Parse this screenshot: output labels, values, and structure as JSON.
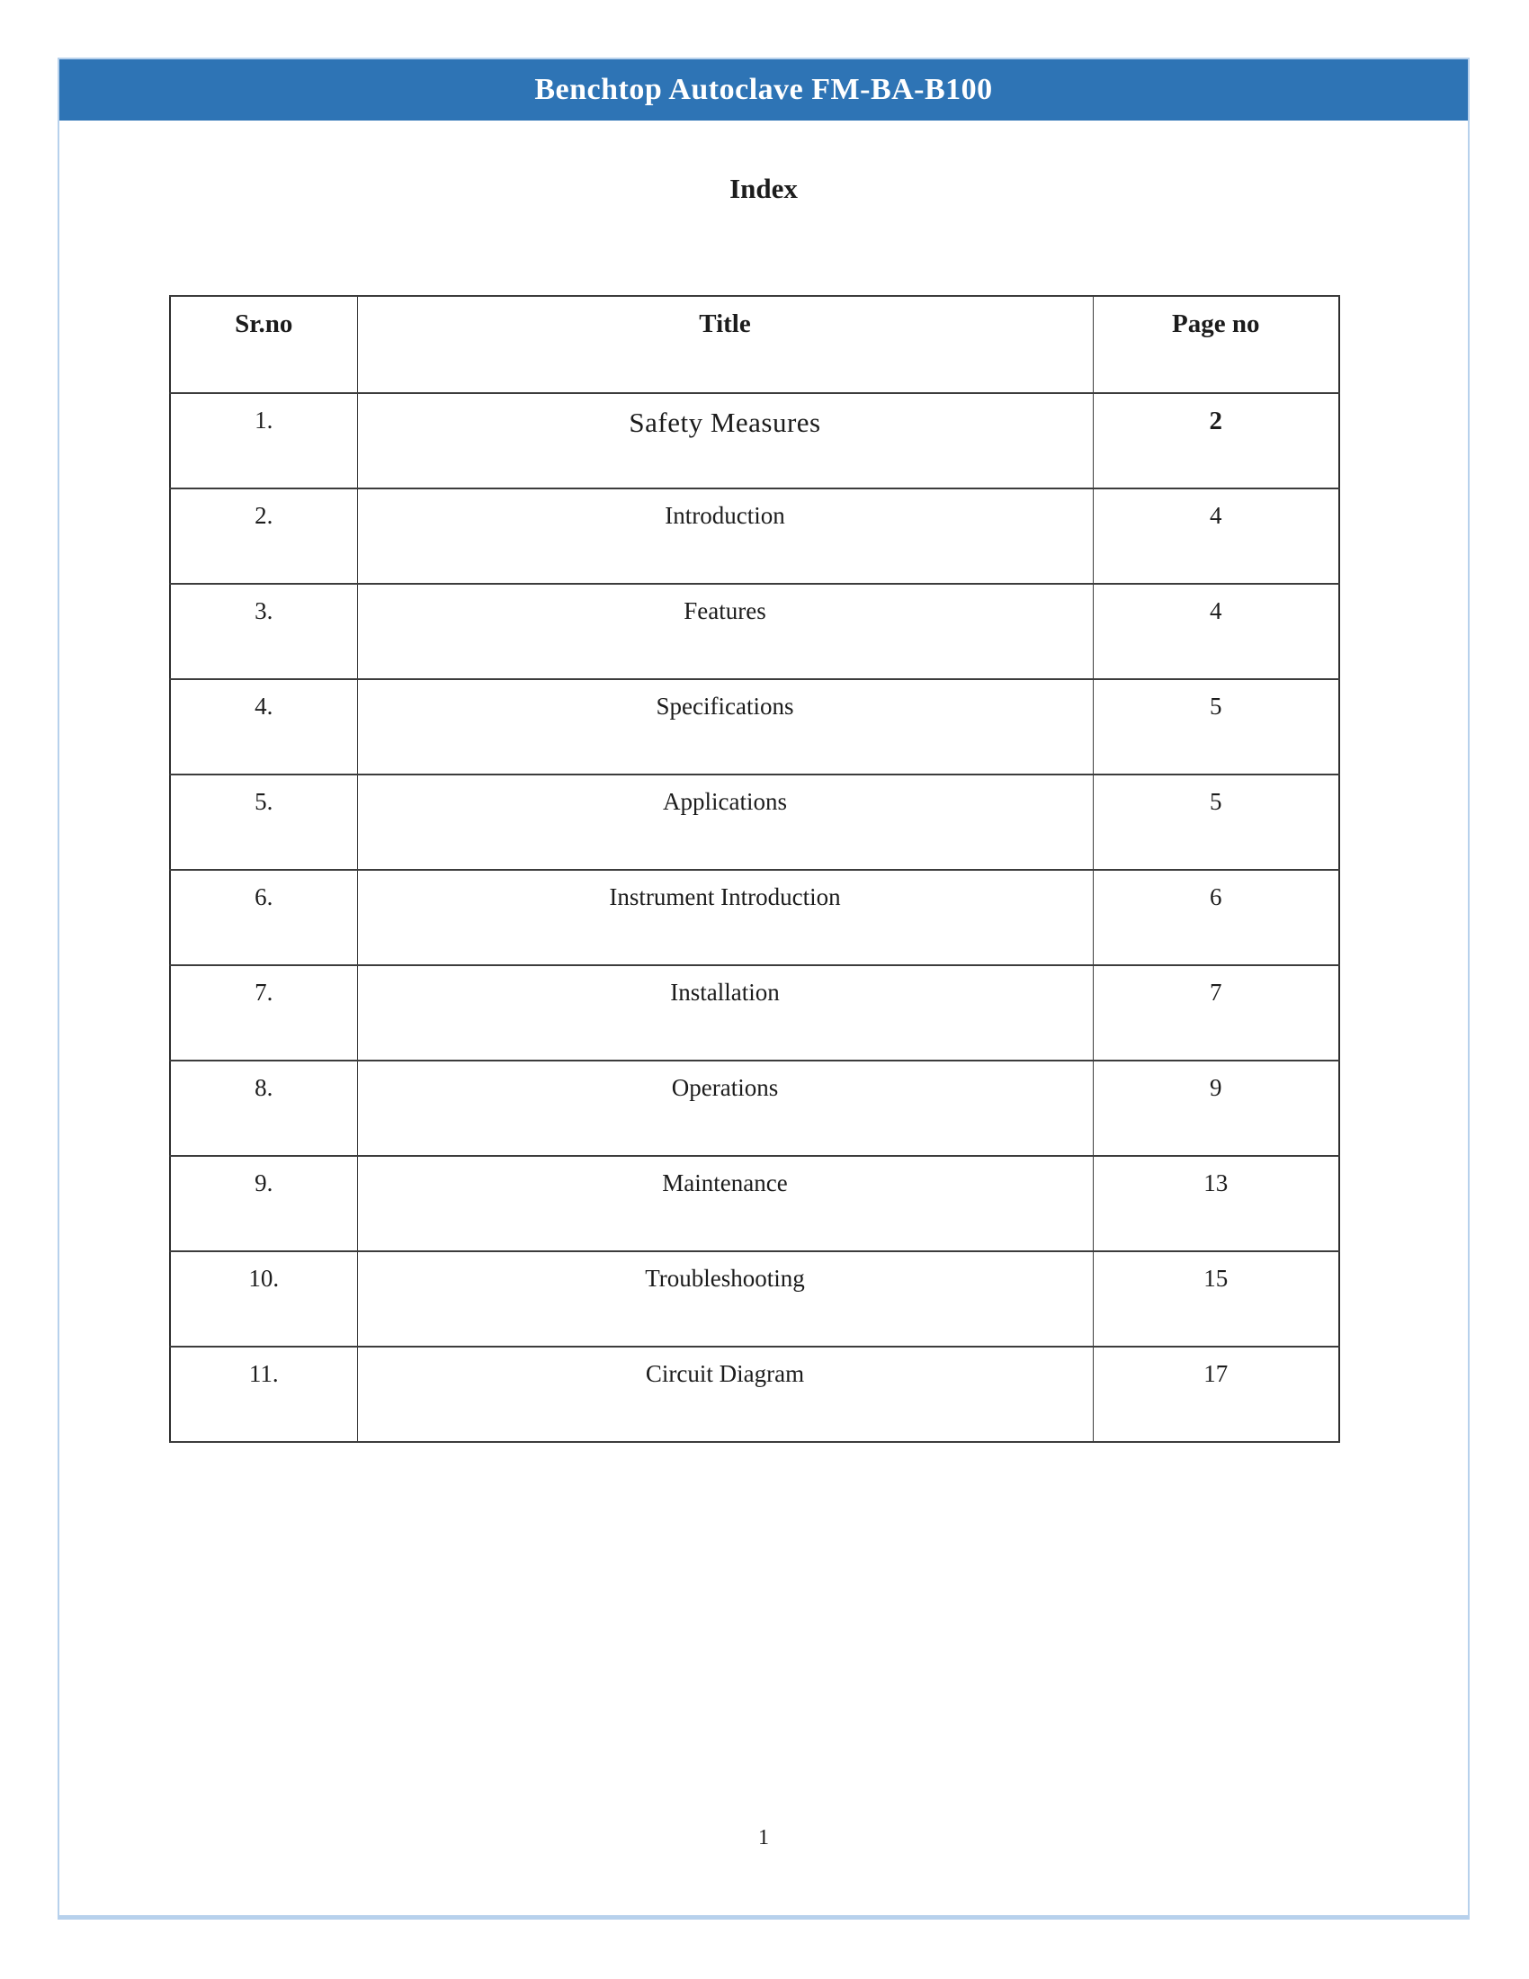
{
  "page": {
    "header": {
      "title": "Benchtop Autoclave FM-BA-B100",
      "bg_color": "#2e74b5",
      "text_color": "#ffffff"
    },
    "heading": "Index",
    "table": {
      "columns": {
        "sr": "Sr.no",
        "title": "Title",
        "page": "Page no"
      },
      "rows": [
        {
          "sr": "1.",
          "title": "Safety Measures",
          "page": "2",
          "emphasis": true
        },
        {
          "sr": "2.",
          "title": "Introduction",
          "page": "4"
        },
        {
          "sr": "3.",
          "title": "Features",
          "page": "4"
        },
        {
          "sr": "4.",
          "title": "Specifications",
          "page": "5"
        },
        {
          "sr": "5.",
          "title": "Applications",
          "page": "5"
        },
        {
          "sr": "6.",
          "title": "Instrument Introduction",
          "page": "6"
        },
        {
          "sr": "7.",
          "title": "Installation",
          "page": "7"
        },
        {
          "sr": "8.",
          "title": "Operations",
          "page": "9"
        },
        {
          "sr": "9.",
          "title": "Maintenance",
          "page": "13"
        },
        {
          "sr": "10.",
          "title": "Troubleshooting",
          "page": "15"
        },
        {
          "sr": "11.",
          "title": "Circuit Diagram",
          "page": "17"
        }
      ]
    },
    "footer": {
      "page_number": "1"
    },
    "colors": {
      "accent_blue": "#2e74b5",
      "frame_border": "#b7d1ec",
      "table_border": "#3c3c3c"
    }
  }
}
